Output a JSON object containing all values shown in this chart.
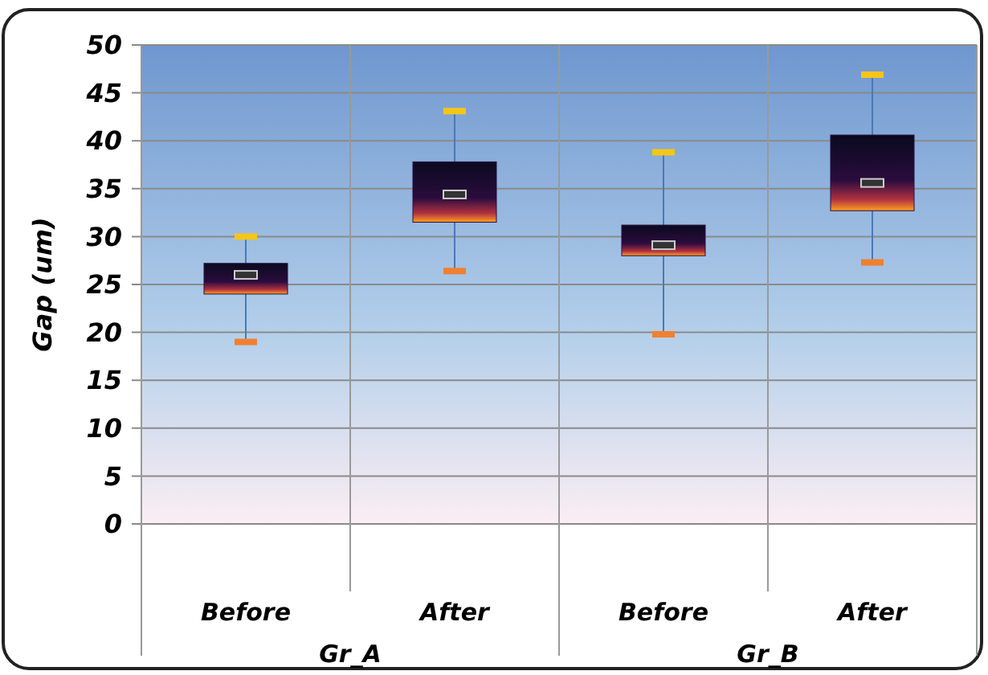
{
  "chart_data": {
    "type": "box",
    "ylabel": "Gap (um)",
    "categories": [
      "Before",
      "After",
      "Before",
      "After"
    ],
    "annotations": [
      "Gr_A",
      "Gr_B"
    ],
    "color": "#2a0c3e",
    "boxes": [
      {
        "low": 19,
        "q1": 24,
        "median": 26,
        "q3": 27.2,
        "high": 30
      },
      {
        "low": 26.4,
        "q1": 31.5,
        "median": 34.4,
        "q3": 37.8,
        "high": 43.1
      },
      {
        "low": 19.8,
        "q1": 28,
        "median": 29.1,
        "q3": 31.2,
        "high": 38.8
      },
      {
        "low": 27.3,
        "q1": 32.7,
        "median": 35.6,
        "q3": 40.6,
        "high": 46.9
      }
    ],
    "ylim": [
      0,
      50
    ],
    "yticks": [
      0,
      5,
      10,
      15,
      20,
      25,
      30,
      35,
      40,
      45,
      50
    ],
    "grid": true
  }
}
